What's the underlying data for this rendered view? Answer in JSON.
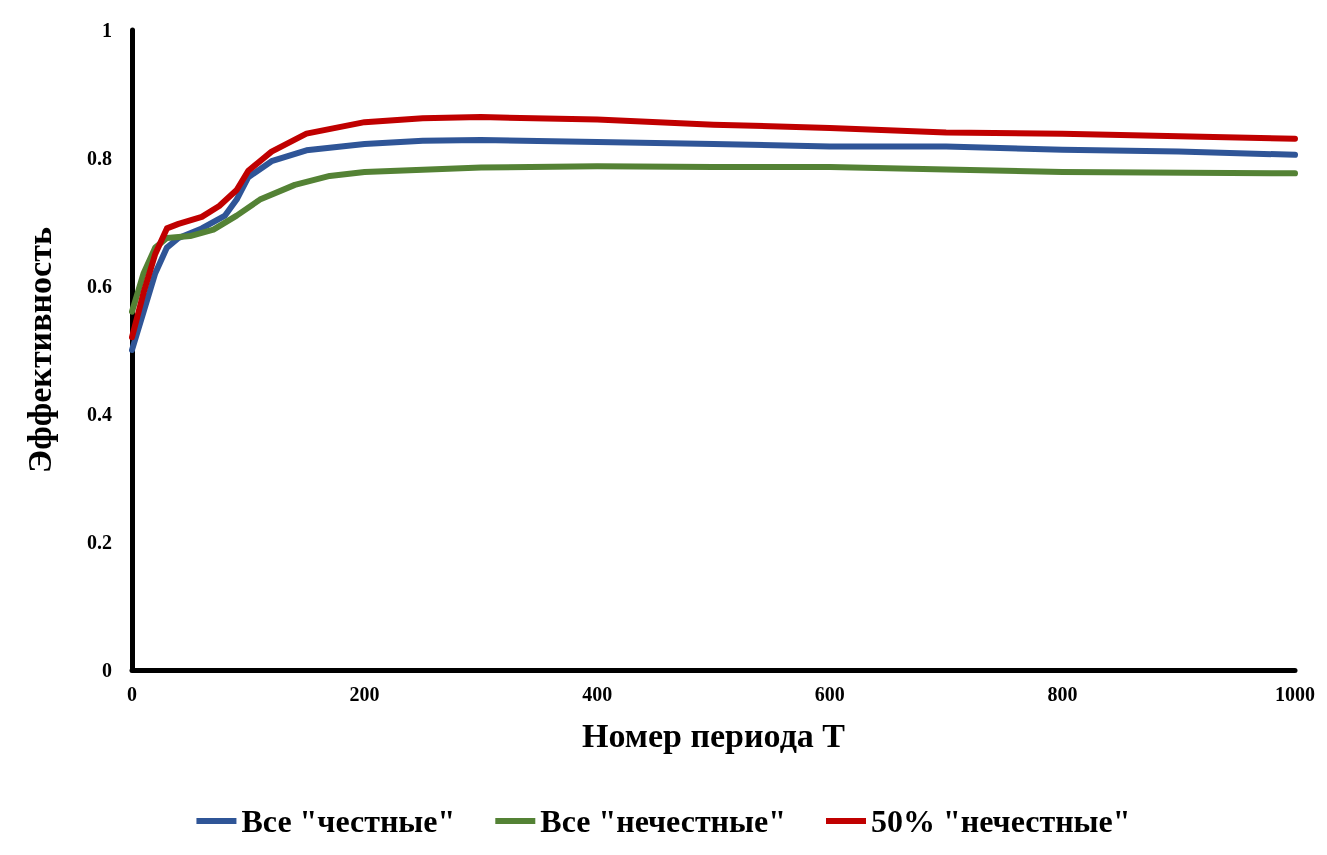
{
  "chart_data": {
    "type": "line",
    "xlabel": "Номер периода T",
    "ylabel": "Эффективность",
    "xlim": [
      0,
      1000
    ],
    "xticks": [
      0,
      200,
      400,
      600,
      800,
      1000
    ],
    "ylim": [
      0,
      1
    ],
    "yticks": [
      0,
      0.2,
      0.4,
      0.6,
      0.8,
      1
    ],
    "grid": false,
    "legend": "bottom",
    "marker": "none",
    "line_style": "solid",
    "series": [
      {
        "name": "Все \"честные\"",
        "color": "#2f5597",
        "x": [
          0,
          10,
          20,
          30,
          40,
          60,
          80,
          90,
          100,
          120,
          150,
          200,
          250,
          300,
          400,
          500,
          600,
          700,
          800,
          900,
          1000
        ],
        "values": [
          0.5,
          0.56,
          0.62,
          0.66,
          0.675,
          0.69,
          0.71,
          0.735,
          0.77,
          0.795,
          0.812,
          0.822,
          0.827,
          0.828,
          0.825,
          0.822,
          0.818,
          0.818,
          0.813,
          0.81,
          0.805
        ]
      },
      {
        "name": "Все \"нечестные\"",
        "color": "#548235",
        "x": [
          0,
          10,
          20,
          30,
          50,
          70,
          90,
          110,
          140,
          170,
          200,
          300,
          400,
          500,
          600,
          700,
          800,
          1000
        ],
        "values": [
          0.56,
          0.62,
          0.66,
          0.675,
          0.678,
          0.688,
          0.71,
          0.735,
          0.758,
          0.772,
          0.778,
          0.785,
          0.787,
          0.786,
          0.786,
          0.782,
          0.778,
          0.776
        ]
      },
      {
        "name": "50% \"нечестные\"",
        "color": "#c00000",
        "x": [
          0,
          10,
          20,
          30,
          40,
          60,
          75,
          90,
          100,
          120,
          150,
          200,
          250,
          300,
          400,
          500,
          600,
          700,
          800,
          900,
          1000
        ],
        "values": [
          0.52,
          0.59,
          0.65,
          0.69,
          0.697,
          0.708,
          0.725,
          0.75,
          0.78,
          0.81,
          0.838,
          0.856,
          0.862,
          0.864,
          0.86,
          0.852,
          0.847,
          0.84,
          0.838,
          0.834,
          0.83
        ]
      }
    ]
  }
}
